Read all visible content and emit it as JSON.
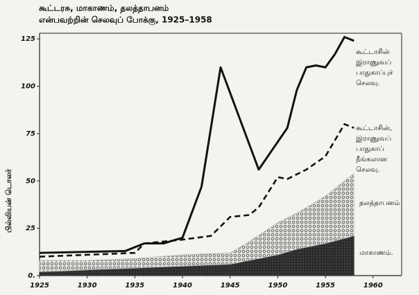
{
  "chart_data": {
    "type": "stacked_area_line",
    "title": [
      "கூட்டரசு, மாகாணம், தலத்தாபனம்",
      "என்பவற்றின் செலவுப் போக்கு, 1925–1958"
    ],
    "y_label": "பில்லியன் டொலர்",
    "xlim": [
      1925,
      1963
    ],
    "xticks": [
      1925,
      1930,
      1935,
      1940,
      1945,
      1950,
      1955,
      1960
    ],
    "ylim": [
      0,
      128
    ],
    "yticks": [
      {
        "value": 0,
        "label": "0."
      },
      25,
      50,
      75,
      100,
      125
    ],
    "areas": {
      "x": [
        1925,
        1930,
        1935,
        1940,
        1945,
        1947,
        1950,
        1952,
        1955,
        1958
      ],
      "series": [
        {
          "name": "மாகாணம்.",
          "color": "#333333",
          "pattern": "dark",
          "values": [
            2,
            3,
            4,
            5,
            6,
            8,
            11,
            14,
            17,
            21
          ]
        },
        {
          "name": "தலத்தாபனம்",
          "color": "#bbbbbb",
          "pattern": "dots",
          "values": [
            6,
            5,
            5,
            6,
            6,
            10,
            17,
            19,
            25,
            33
          ]
        }
      ]
    },
    "lines": [
      {
        "name": [
          "கூட்டாசின்",
          "இராணுவப்",
          "பாதுகாப்புச்",
          "செலவு."
        ],
        "color": "#111111",
        "dash": false,
        "x": [
          1925,
          1934,
          1936,
          1938,
          1940,
          1942,
          1944,
          1948,
          1951,
          1952,
          1953,
          1954,
          1955,
          1956,
          1957,
          1958
        ],
        "values": [
          12,
          13,
          17,
          17,
          20,
          47,
          110,
          56,
          78,
          98,
          110,
          111,
          110,
          117,
          126,
          124
        ]
      },
      {
        "name": [
          "கூட்டாசின்,",
          "இராணுவப்",
          "பாதுகாப்",
          "நீங்கலான",
          "செலவு."
        ],
        "color": "#111111",
        "dash": true,
        "x": [
          1925,
          1935,
          1936,
          1940,
          1943,
          1945,
          1947,
          1948,
          1950,
          1951,
          1953,
          1955,
          1957,
          1958
        ],
        "values": [
          10,
          12,
          17,
          19,
          21,
          31,
          32,
          36,
          52,
          51,
          56,
          63,
          80,
          78
        ]
      }
    ]
  }
}
